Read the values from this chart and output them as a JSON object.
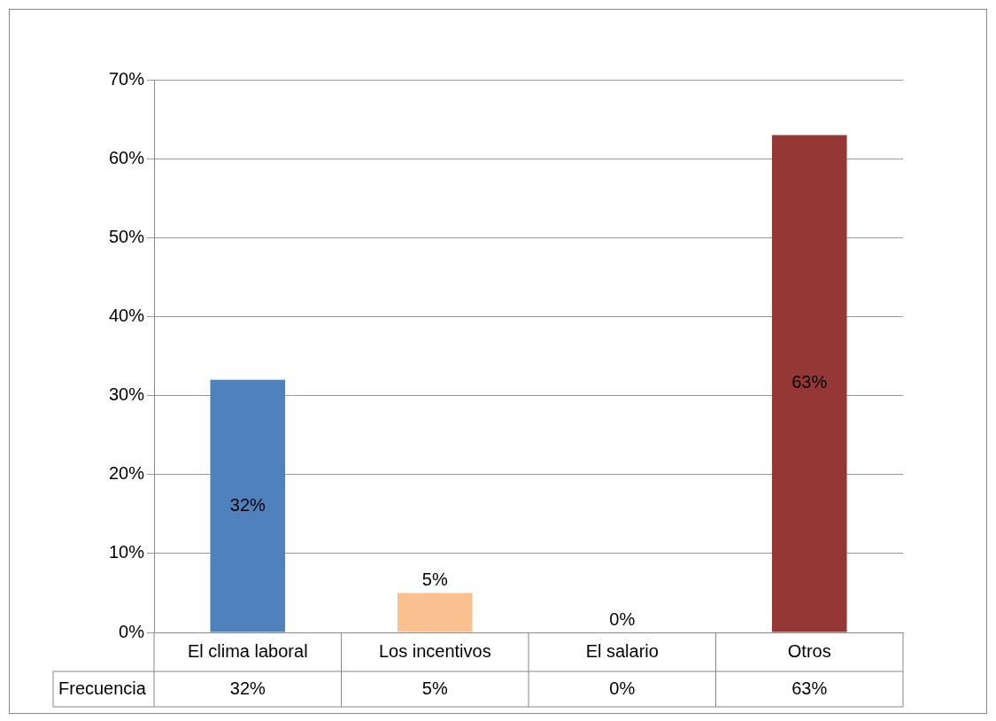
{
  "chart_data": {
    "type": "bar",
    "categories": [
      "El clima laboral",
      "Los incentivos",
      "El salario",
      "Otros"
    ],
    "series": [
      {
        "name": "Frecuencia",
        "colors": [
          "#4f81bd",
          "#fac090",
          "#4f6228",
          "#953735"
        ],
        "values": [
          32,
          5,
          0,
          63
        ],
        "value_labels": [
          "32%",
          "5%",
          "0%",
          "63%"
        ]
      }
    ],
    "ylim": [
      0,
      70
    ],
    "yticks": [
      {
        "value": 0,
        "label": "0%"
      },
      {
        "value": 10,
        "label": "10%"
      },
      {
        "value": 20,
        "label": "20%"
      },
      {
        "value": 30,
        "label": "30%"
      },
      {
        "value": 40,
        "label": "40%"
      },
      {
        "value": 50,
        "label": "50%"
      },
      {
        "value": 60,
        "label": "60%"
      },
      {
        "value": 70,
        "label": "70%"
      }
    ],
    "grid": "y",
    "legend": false
  }
}
